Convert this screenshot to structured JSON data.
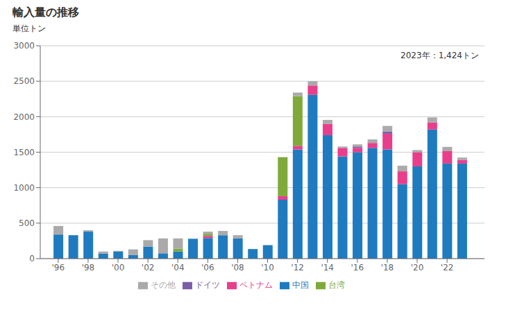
{
  "chart_data": {
    "type": "bar",
    "stacked": true,
    "title": "輸入量の推移",
    "ylabel": "単位トン",
    "annotation": "2023年：1,424トン",
    "x": [
      1996,
      1997,
      1998,
      1999,
      2000,
      2001,
      2002,
      2003,
      2004,
      2005,
      2006,
      2007,
      2008,
      2009,
      2010,
      2011,
      2012,
      2013,
      2014,
      2015,
      2016,
      2017,
      2018,
      2019,
      2020,
      2021,
      2022,
      2023
    ],
    "xlim": [
      1994.8,
      2024.5
    ],
    "xticks": [
      {
        "value": 1996,
        "label": "'96"
      },
      {
        "value": 1998,
        "label": "'98"
      },
      {
        "value": 2000,
        "label": "'00"
      },
      {
        "value": 2002,
        "label": "'02"
      },
      {
        "value": 2004,
        "label": "'04"
      },
      {
        "value": 2006,
        "label": "'06"
      },
      {
        "value": 2008,
        "label": "'08"
      },
      {
        "value": 2010,
        "label": "'10"
      },
      {
        "value": 2012,
        "label": "'12"
      },
      {
        "value": 2014,
        "label": "'14"
      },
      {
        "value": 2016,
        "label": "'16"
      },
      {
        "value": 2018,
        "label": "'18"
      },
      {
        "value": 2020,
        "label": "'20"
      },
      {
        "value": 2022,
        "label": "'22"
      }
    ],
    "ylim": [
      0,
      3000
    ],
    "yticks": [
      0,
      500,
      1000,
      1500,
      2000,
      2500,
      3000
    ],
    "grid": true,
    "legend": "bottom",
    "series": [
      {
        "name": "中国",
        "color": "#1f7bbf",
        "values": [
          340,
          330,
          380,
          70,
          100,
          50,
          170,
          75,
          100,
          280,
          290,
          330,
          285,
          135,
          190,
          830,
          1540,
          2310,
          1740,
          1440,
          1500,
          1560,
          1540,
          1050,
          1300,
          1820,
          1340,
          1340
        ]
      },
      {
        "name": "ベトナム",
        "color": "#e83e8c",
        "values": [
          0,
          0,
          0,
          0,
          0,
          0,
          0,
          0,
          0,
          0,
          30,
          0,
          0,
          0,
          0,
          50,
          50,
          130,
          160,
          120,
          60,
          70,
          220,
          180,
          200,
          100,
          175,
          50
        ]
      },
      {
        "name": "台湾",
        "color": "#7faa3a",
        "values": [
          0,
          0,
          0,
          0,
          0,
          0,
          0,
          0,
          40,
          0,
          30,
          0,
          0,
          0,
          0,
          550,
          700,
          0,
          0,
          0,
          0,
          0,
          0,
          0,
          0,
          0,
          0,
          0
        ]
      },
      {
        "name": "ドイツ",
        "color": "#7b5ea7",
        "values": [
          0,
          0,
          0,
          0,
          0,
          0,
          0,
          0,
          0,
          0,
          0,
          0,
          0,
          0,
          0,
          0,
          0,
          0,
          0,
          0,
          20,
          0,
          30,
          0,
          0,
          0,
          0,
          0
        ]
      },
      {
        "name": "その他",
        "color": "#aaaaaa",
        "values": [
          120,
          0,
          20,
          30,
          10,
          80,
          90,
          210,
          145,
          0,
          30,
          60,
          45,
          0,
          0,
          0,
          50,
          60,
          55,
          20,
          30,
          50,
          80,
          80,
          30,
          70,
          60,
          34
        ]
      }
    ]
  }
}
